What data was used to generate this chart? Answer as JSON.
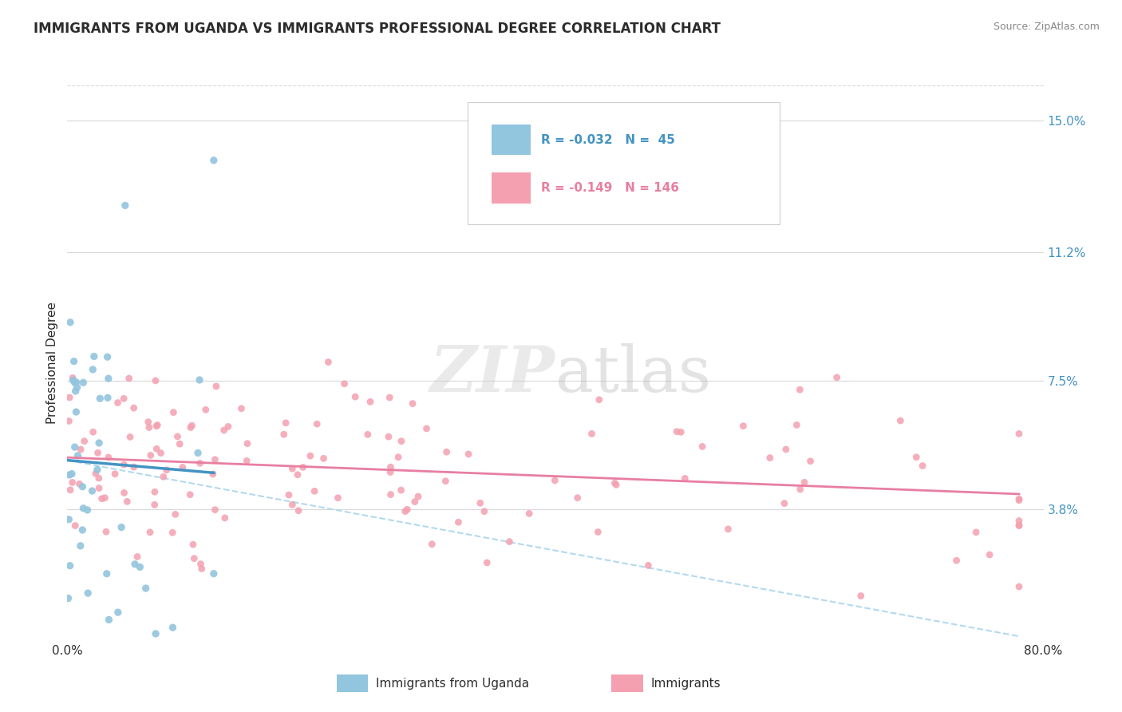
{
  "title": "IMMIGRANTS FROM UGANDA VS IMMIGRANTS PROFESSIONAL DEGREE CORRELATION CHART",
  "source": "Source: ZipAtlas.com",
  "ylabel": "Professional Degree",
  "xlim": [
    0.0,
    80.0
  ],
  "ylim": [
    0.0,
    16.0
  ],
  "yticks": [
    3.8,
    7.5,
    11.2,
    15.0
  ],
  "xticks": [
    0.0,
    80.0
  ],
  "legend": {
    "series1_label": "Immigrants from Uganda",
    "series2_label": "Immigrants",
    "r1": "-0.032",
    "n1": "45",
    "r2": "-0.149",
    "n2": "146"
  },
  "blue_color": "#92c5de",
  "pink_color": "#f4a0b0",
  "blue_line_color": "#4393c3",
  "pink_line_color": "#e87fa0",
  "dashed_line_color": "#b3d9f0",
  "background_color": "#ffffff",
  "grid_color": "#d8d8d8",
  "title_color": "#2c2c2c",
  "axis_label_color": "#4393c3",
  "pink_text_color": "#e87fa0",
  "seed": 42
}
